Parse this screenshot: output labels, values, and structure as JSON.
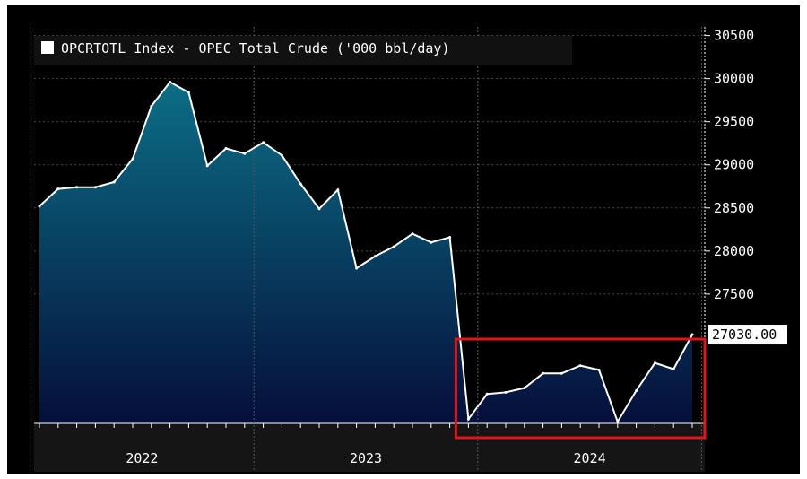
{
  "chart_data": {
    "type": "area",
    "title": "OPCRTOTL Index - OPEC Total Crude ('000 bbl/day)",
    "series": [
      {
        "name": "OPCRTOTL Index - OPEC Total Crude ('000 bbl/day)",
        "x": [
          "2022-01",
          "2022-02",
          "2022-03",
          "2022-04",
          "2022-05",
          "2022-06",
          "2022-07",
          "2022-08",
          "2022-09",
          "2022-10",
          "2022-11",
          "2022-12",
          "2023-01",
          "2023-02",
          "2023-03",
          "2023-04",
          "2023-05",
          "2023-06",
          "2023-07",
          "2023-08",
          "2023-09",
          "2023-10",
          "2023-11",
          "2023-12",
          "2024-01",
          "2024-02",
          "2024-03",
          "2024-04",
          "2024-05",
          "2024-06",
          "2024-07",
          "2024-08",
          "2024-09",
          "2024-10",
          "2024-11",
          "2024-12"
        ],
        "values": [
          28520,
          28720,
          28740,
          28740,
          28800,
          29070,
          29680,
          29960,
          29840,
          28990,
          29190,
          29130,
          29260,
          29110,
          28780,
          28490,
          28710,
          27800,
          27940,
          28050,
          28200,
          28100,
          28160,
          26050,
          26340,
          26360,
          26410,
          26580,
          26580,
          26670,
          26620,
          26020,
          26380,
          26700,
          26630,
          27030
        ]
      }
    ],
    "x_ticks": [
      "2022",
      "2023",
      "2024"
    ],
    "y_ticks": [
      27500,
      28000,
      28500,
      29000,
      29500,
      30000,
      30500
    ],
    "ylim": [
      26000,
      30600
    ],
    "last_value_label": "27030.00",
    "grid": true,
    "legend_position": "top-left",
    "highlight_box": {
      "from": "2023-12",
      "to": "2024-12",
      "color": "#e0141b"
    },
    "colors": {
      "background": "#000000",
      "line": "#ffffff",
      "area_top": "#0b6e86",
      "area_bottom": "#050f3a",
      "grid": "#4a4a4a",
      "axis_band": "#1a1a1a",
      "highlight": "#e0141b"
    }
  }
}
